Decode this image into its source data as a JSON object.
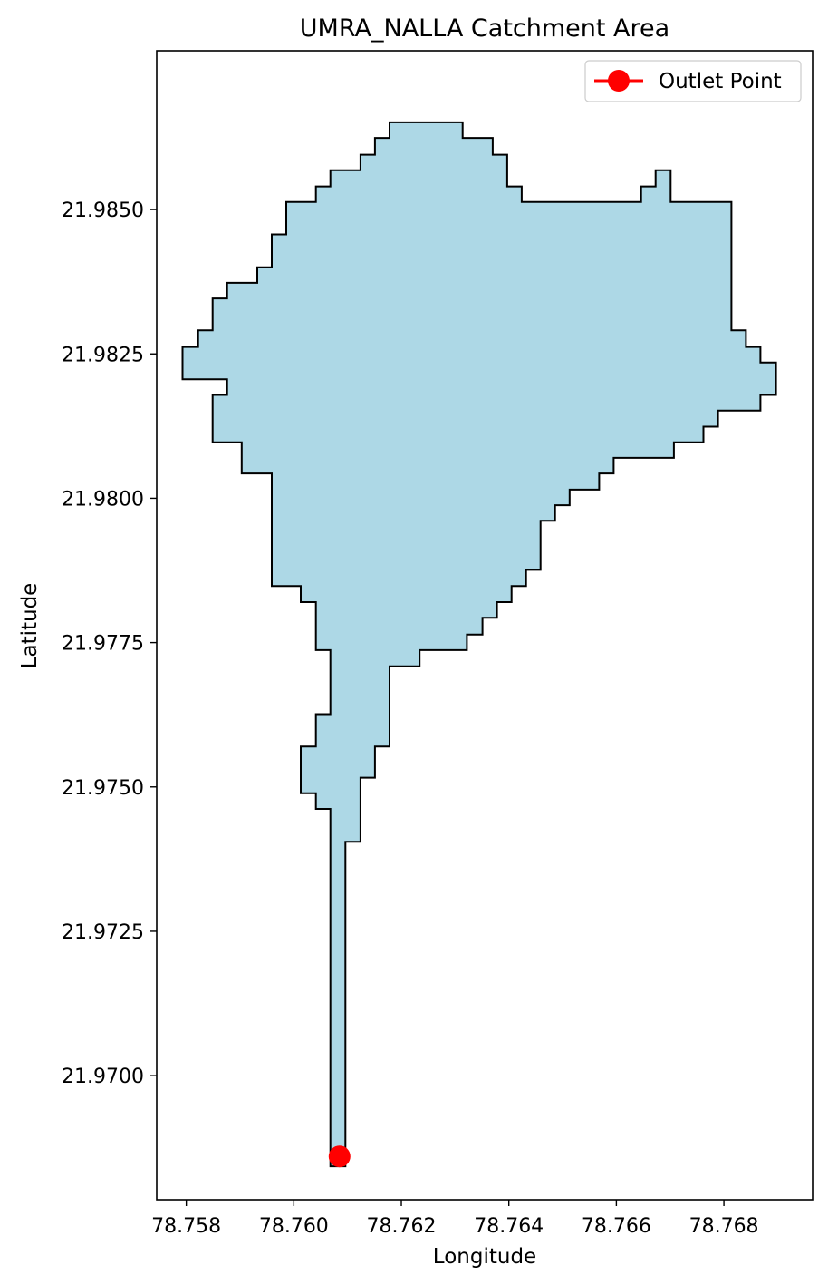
{
  "chart_data": {
    "type": "map",
    "title": "UMRA_NALLA Catchment Area",
    "xlabel": "Longitude",
    "ylabel": "Latitude",
    "xlim": [
      78.75745,
      78.76965
    ],
    "ylim": [
      21.96785,
      21.98775
    ],
    "xticks": [
      {
        "value": 78.758,
        "label": "78.758"
      },
      {
        "value": 78.76,
        "label": "78.760"
      },
      {
        "value": 78.762,
        "label": "78.762"
      },
      {
        "value": 78.764,
        "label": "78.764"
      },
      {
        "value": 78.766,
        "label": "78.766"
      },
      {
        "value": 78.768,
        "label": "78.768"
      }
    ],
    "yticks": [
      {
        "value": 21.97,
        "label": "21.9700"
      },
      {
        "value": 21.9725,
        "label": "21.9725"
      },
      {
        "value": 21.975,
        "label": "21.9750"
      },
      {
        "value": 21.9775,
        "label": "21.9775"
      },
      {
        "value": 21.98,
        "label": "21.9800"
      },
      {
        "value": 21.9825,
        "label": "21.9825"
      },
      {
        "value": 21.985,
        "label": "21.9850"
      }
    ],
    "grid": false,
    "legend": {
      "placement": "top-right",
      "entries": [
        {
          "label": "Outlet Point",
          "color": "#ff0000",
          "marker": "circle"
        }
      ]
    },
    "catchment": {
      "fill": "#add8e6",
      "edge": "#000000",
      "boundary": [
        [
          78.76068,
          21.96843
        ],
        [
          78.76068,
          21.97462
        ],
        [
          78.76041,
          21.97462
        ],
        [
          78.76041,
          21.97489
        ],
        [
          78.76013,
          21.97489
        ],
        [
          78.76013,
          21.9757
        ],
        [
          78.76041,
          21.9757
        ],
        [
          78.76041,
          21.97626
        ],
        [
          78.76068,
          21.97626
        ],
        [
          78.76068,
          21.97737
        ],
        [
          78.76041,
          21.97737
        ],
        [
          78.76041,
          21.9782
        ],
        [
          78.76013,
          21.9782
        ],
        [
          78.76013,
          21.97848
        ],
        [
          78.75959,
          21.97848
        ],
        [
          78.75959,
          21.98043
        ],
        [
          78.75903,
          21.98043
        ],
        [
          78.75903,
          21.98097
        ],
        [
          78.75849,
          21.98097
        ],
        [
          78.75849,
          21.98179
        ],
        [
          78.75876,
          21.98179
        ],
        [
          78.75876,
          21.98206
        ],
        [
          78.75793,
          21.98206
        ],
        [
          78.75793,
          21.98262
        ],
        [
          78.75822,
          21.98262
        ],
        [
          78.75822,
          21.98291
        ],
        [
          78.75849,
          21.98291
        ],
        [
          78.75849,
          21.98346
        ],
        [
          78.75876,
          21.98346
        ],
        [
          78.75876,
          21.98373
        ],
        [
          78.75932,
          21.98373
        ],
        [
          78.75932,
          21.984
        ],
        [
          78.75959,
          21.984
        ],
        [
          78.75959,
          21.98457
        ],
        [
          78.75986,
          21.98457
        ],
        [
          78.75986,
          21.98513
        ],
        [
          78.76041,
          21.98513
        ],
        [
          78.76041,
          21.9854
        ],
        [
          78.76068,
          21.9854
        ],
        [
          78.76068,
          21.98568
        ],
        [
          78.76124,
          21.98568
        ],
        [
          78.76124,
          21.98595
        ],
        [
          78.76151,
          21.98595
        ],
        [
          78.76151,
          21.98624
        ],
        [
          78.76178,
          21.98624
        ],
        [
          78.76178,
          21.98651
        ],
        [
          78.76314,
          21.98651
        ],
        [
          78.76314,
          21.98624
        ],
        [
          78.7637,
          21.98624
        ],
        [
          78.7637,
          21.98595
        ],
        [
          78.76397,
          21.98595
        ],
        [
          78.76397,
          21.9854
        ],
        [
          78.76424,
          21.9854
        ],
        [
          78.76424,
          21.98513
        ],
        [
          78.76646,
          21.98513
        ],
        [
          78.76646,
          21.9854
        ],
        [
          78.76673,
          21.9854
        ],
        [
          78.76673,
          21.98568
        ],
        [
          78.76701,
          21.98568
        ],
        [
          78.76701,
          21.98513
        ],
        [
          78.76814,
          21.98513
        ],
        [
          78.76814,
          21.98291
        ],
        [
          78.76841,
          21.98291
        ],
        [
          78.76841,
          21.98262
        ],
        [
          78.76868,
          21.98262
        ],
        [
          78.76868,
          21.98235
        ],
        [
          78.76897,
          21.98235
        ],
        [
          78.76897,
          21.98179
        ],
        [
          78.76868,
          21.98179
        ],
        [
          78.76868,
          21.98152
        ],
        [
          78.76789,
          21.98152
        ],
        [
          78.76789,
          21.98124
        ],
        [
          78.76762,
          21.98124
        ],
        [
          78.76762,
          21.98097
        ],
        [
          78.76707,
          21.98097
        ],
        [
          78.76707,
          21.9807
        ],
        [
          78.76595,
          21.9807
        ],
        [
          78.76595,
          21.98043
        ],
        [
          78.76568,
          21.98043
        ],
        [
          78.76568,
          21.98015
        ],
        [
          78.76513,
          21.98015
        ],
        [
          78.76513,
          21.97988
        ],
        [
          78.76486,
          21.97988
        ],
        [
          78.76486,
          21.97961
        ],
        [
          78.76459,
          21.97961
        ],
        [
          78.76459,
          21.97876
        ],
        [
          78.76432,
          21.97876
        ],
        [
          78.76432,
          21.97848
        ],
        [
          78.76405,
          21.97848
        ],
        [
          78.76405,
          21.9782
        ],
        [
          78.76378,
          21.9782
        ],
        [
          78.76378,
          21.97793
        ],
        [
          78.76351,
          21.97793
        ],
        [
          78.76351,
          21.97764
        ],
        [
          78.76322,
          21.97764
        ],
        [
          78.76322,
          21.97737
        ],
        [
          78.76234,
          21.97737
        ],
        [
          78.76234,
          21.97709
        ],
        [
          78.76178,
          21.97709
        ],
        [
          78.76178,
          21.9757
        ],
        [
          78.76151,
          21.9757
        ],
        [
          78.76151,
          21.97516
        ],
        [
          78.76124,
          21.97516
        ],
        [
          78.76124,
          21.97405
        ],
        [
          78.76096,
          21.97405
        ],
        [
          78.76096,
          21.96843
        ]
      ]
    },
    "outlet_point": {
      "label": "Outlet Point",
      "lon": 78.76085,
      "lat": 21.9686,
      "color": "#ff0000"
    }
  }
}
